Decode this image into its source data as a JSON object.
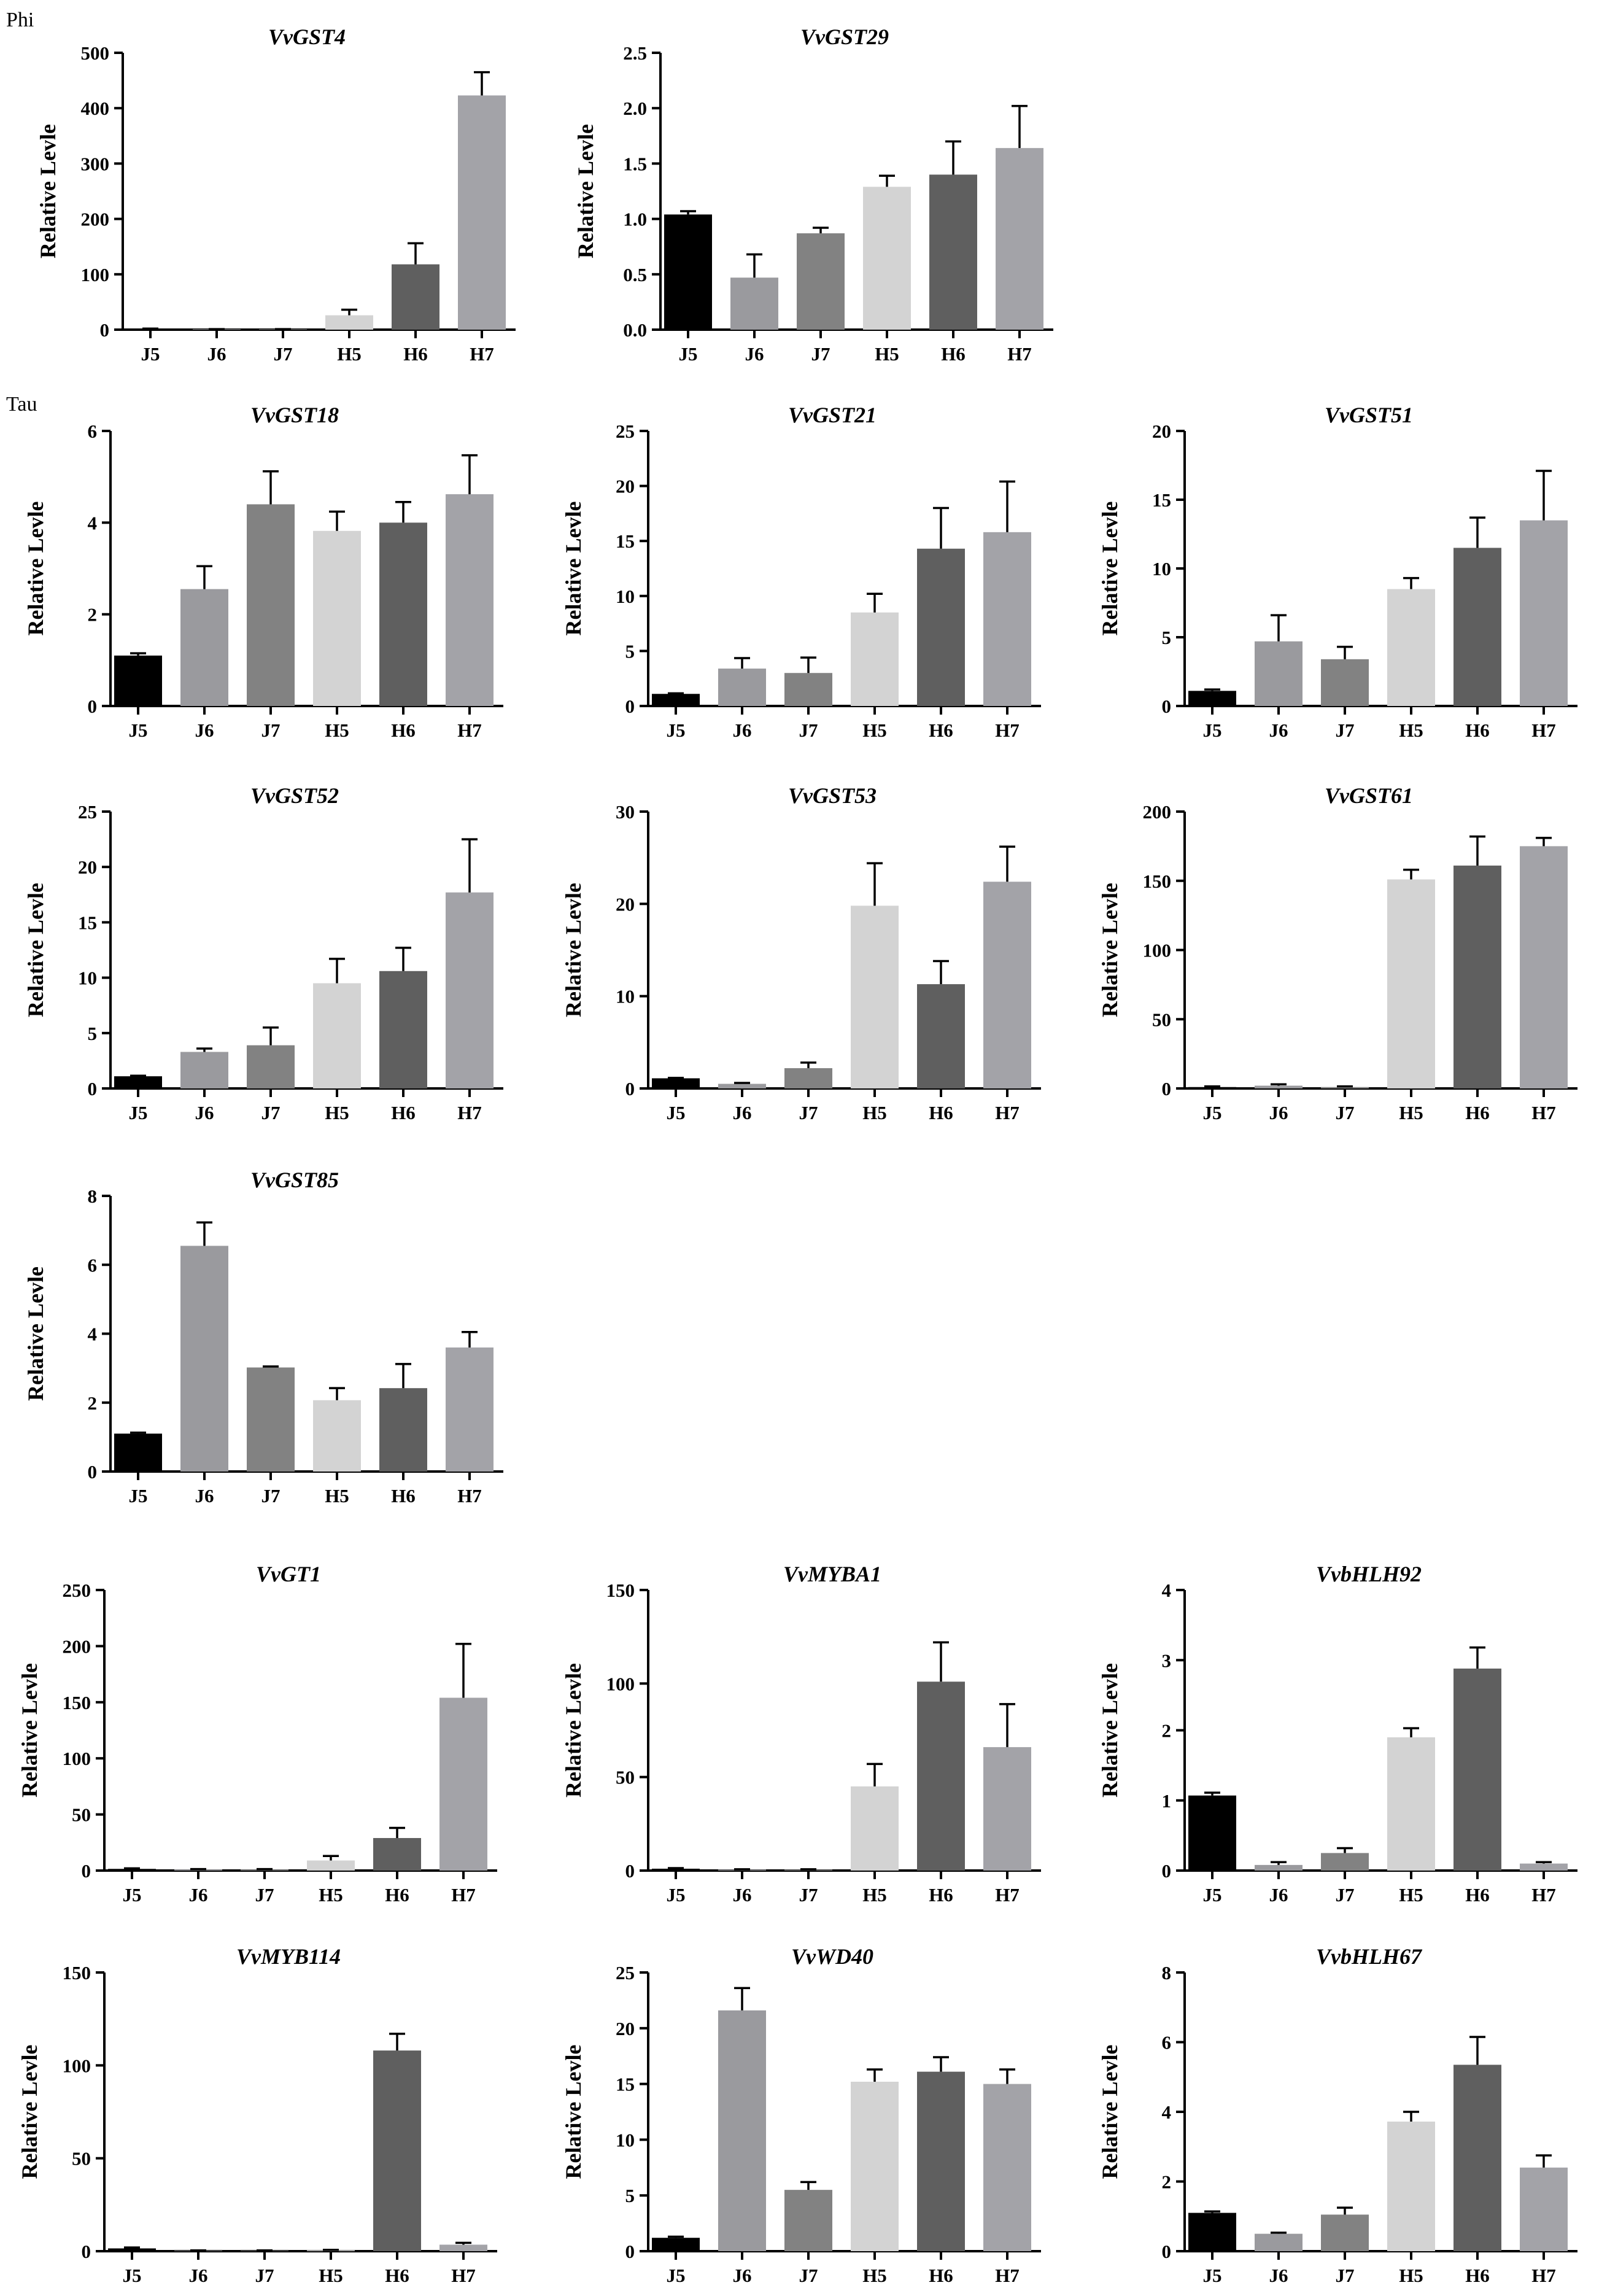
{
  "figure": {
    "section_labels": {
      "phi": "Phi",
      "tau": "Tau"
    },
    "bar_colors": [
      "#000000",
      "#9a9a9e",
      "#828282",
      "#d3d3d3",
      "#5f5f5f",
      "#a3a3a8"
    ]
  },
  "chart_data": [
    {
      "type": "bar",
      "title": "VvGST4",
      "ylabel": "Relative Levle",
      "xlabel": "",
      "categories": [
        "J5",
        "J6",
        "J7",
        "H5",
        "H6",
        "H7"
      ],
      "values": [
        1,
        1,
        1,
        26,
        118,
        423
      ],
      "errors": [
        1,
        0,
        0,
        10,
        38,
        42
      ],
      "ylim": [
        0,
        500
      ],
      "yticks": [
        0,
        100,
        200,
        300,
        400,
        500
      ],
      "ytick_labels": [
        "0",
        "100",
        "200",
        "300",
        "400",
        "500"
      ]
    },
    {
      "type": "bar",
      "title": "VvGST29",
      "ylabel": "Relative Levle",
      "xlabel": "",
      "categories": [
        "J5",
        "J6",
        "J7",
        "H5",
        "H6",
        "H7"
      ],
      "values": [
        1.04,
        0.47,
        0.87,
        1.29,
        1.4,
        1.64
      ],
      "errors": [
        0.03,
        0.21,
        0.05,
        0.1,
        0.3,
        0.38
      ],
      "ylim": [
        0,
        2.5
      ],
      "yticks": [
        0,
        0.5,
        1,
        1.5,
        2,
        2.5
      ],
      "ytick_labels": [
        "0.0",
        "0.5",
        "1.0",
        "1.5",
        "2.0",
        "2.5"
      ]
    },
    {
      "type": "bar",
      "title": "VvGST18",
      "ylabel": "Relative Levle",
      "xlabel": "",
      "categories": [
        "J5",
        "J6",
        "J7",
        "H5",
        "H6",
        "H7"
      ],
      "values": [
        1.1,
        2.55,
        4.4,
        3.82,
        4.0,
        4.62
      ],
      "errors": [
        0.05,
        0.5,
        0.72,
        0.42,
        0.45,
        0.85
      ],
      "ylim": [
        0,
        6
      ],
      "yticks": [
        0,
        2,
        4,
        6
      ],
      "ytick_labels": [
        "0",
        "2",
        "4",
        "6"
      ]
    },
    {
      "type": "bar",
      "title": "VvGST21",
      "ylabel": "Relative Levle",
      "xlabel": "",
      "categories": [
        "J5",
        "J6",
        "J7",
        "H5",
        "H6",
        "H7"
      ],
      "values": [
        1.1,
        3.4,
        3.0,
        8.5,
        14.3,
        15.8
      ],
      "errors": [
        0.05,
        0.95,
        1.4,
        1.7,
        3.7,
        4.6
      ],
      "ylim": [
        0,
        25
      ],
      "yticks": [
        0,
        5,
        10,
        15,
        20,
        25
      ],
      "ytick_labels": [
        "0",
        "5",
        "10",
        "15",
        "20",
        "25"
      ]
    },
    {
      "type": "bar",
      "title": "VvGST51",
      "ylabel": "Relative Levle",
      "xlabel": "",
      "categories": [
        "J5",
        "J6",
        "J7",
        "H5",
        "H6",
        "H7"
      ],
      "values": [
        1.1,
        4.7,
        3.4,
        8.5,
        11.5,
        13.5
      ],
      "errors": [
        0.1,
        1.9,
        0.9,
        0.8,
        2.2,
        3.6
      ],
      "ylim": [
        0,
        20
      ],
      "yticks": [
        0,
        5,
        10,
        15,
        20
      ],
      "ytick_labels": [
        "0",
        "5",
        "10",
        "15",
        "20"
      ]
    },
    {
      "type": "bar",
      "title": "VvGST52",
      "ylabel": "Relative Levle",
      "xlabel": "",
      "categories": [
        "J5",
        "J6",
        "J7",
        "H5",
        "H6",
        "H7"
      ],
      "values": [
        1.1,
        3.3,
        3.9,
        9.5,
        10.6,
        17.7
      ],
      "errors": [
        0.05,
        0.3,
        1.6,
        2.2,
        2.1,
        4.8
      ],
      "ylim": [
        0,
        25
      ],
      "yticks": [
        0,
        5,
        10,
        15,
        20,
        25
      ],
      "ytick_labels": [
        "0",
        "5",
        "10",
        "15",
        "20",
        "25"
      ]
    },
    {
      "type": "bar",
      "title": "VvGST53",
      "ylabel": "Relative Levle",
      "xlabel": "",
      "categories": [
        "J5",
        "J6",
        "J7",
        "H5",
        "H6",
        "H7"
      ],
      "values": [
        1.1,
        0.5,
        2.2,
        19.8,
        11.3,
        22.4
      ],
      "errors": [
        0.05,
        0.1,
        0.6,
        4.6,
        2.5,
        3.8
      ],
      "ylim": [
        0,
        30
      ],
      "yticks": [
        0,
        10,
        20,
        30
      ],
      "ytick_labels": [
        "0",
        "10",
        "20",
        "30"
      ]
    },
    {
      "type": "bar",
      "title": "VvGST61",
      "ylabel": "Relative Levle",
      "xlabel": "",
      "categories": [
        "J5",
        "J6",
        "J7",
        "H5",
        "H6",
        "H7"
      ],
      "values": [
        1,
        2,
        1,
        151,
        161,
        175
      ],
      "errors": [
        0.5,
        1,
        0.5,
        7,
        21,
        6
      ],
      "ylim": [
        0,
        200
      ],
      "yticks": [
        0,
        50,
        100,
        150,
        200
      ],
      "ytick_labels": [
        "0",
        "50",
        "100",
        "150",
        "200"
      ]
    },
    {
      "type": "bar",
      "title": "VvGST85",
      "ylabel": "Relative Levle",
      "xlabel": "",
      "categories": [
        "J5",
        "J6",
        "J7",
        "H5",
        "H6",
        "H7"
      ],
      "values": [
        1.1,
        6.55,
        3.02,
        2.07,
        2.42,
        3.6
      ],
      "errors": [
        0.03,
        0.68,
        0.03,
        0.35,
        0.7,
        0.45
      ],
      "ylim": [
        0,
        8
      ],
      "yticks": [
        0,
        2,
        4,
        6,
        8
      ],
      "ytick_labels": [
        "0",
        "2",
        "4",
        "6",
        "8"
      ]
    },
    {
      "type": "bar",
      "title": "VvGT1",
      "ylabel": "Relative Levle",
      "xlabel": "",
      "categories": [
        "J5",
        "J6",
        "J7",
        "H5",
        "H6",
        "H7"
      ],
      "values": [
        1.5,
        1,
        1,
        9,
        29,
        154
      ],
      "errors": [
        0.5,
        0.3,
        0.3,
        4,
        9,
        48
      ],
      "ylim": [
        0,
        250
      ],
      "yticks": [
        0,
        50,
        100,
        150,
        200,
        250
      ],
      "ytick_labels": [
        "0",
        "50",
        "100",
        "150",
        "200",
        "250"
      ]
    },
    {
      "type": "bar",
      "title": "VvMYBA1",
      "ylabel": "Relative Levle",
      "xlabel": "",
      "categories": [
        "J5",
        "J6",
        "J7",
        "H5",
        "H6",
        "H7"
      ],
      "values": [
        1,
        0.5,
        0.5,
        45,
        101,
        66
      ],
      "errors": [
        0.3,
        0.2,
        0.2,
        12,
        21,
        23
      ],
      "ylim": [
        0,
        150
      ],
      "yticks": [
        0,
        50,
        100,
        150
      ],
      "ytick_labels": [
        "0",
        "50",
        "100",
        "150"
      ]
    },
    {
      "type": "bar",
      "title": "VvbHLH92",
      "ylabel": "Relative Levle",
      "xlabel": "",
      "categories": [
        "J5",
        "J6",
        "J7",
        "H5",
        "H6",
        "H7"
      ],
      "values": [
        1.07,
        0.08,
        0.25,
        1.9,
        2.88,
        0.1
      ],
      "errors": [
        0.04,
        0.04,
        0.07,
        0.13,
        0.3,
        0.02
      ],
      "ylim": [
        0,
        4
      ],
      "yticks": [
        0,
        1,
        2,
        3,
        4
      ],
      "ytick_labels": [
        "0",
        "1",
        "2",
        "3",
        "4"
      ]
    },
    {
      "type": "bar",
      "title": "VvMYB114",
      "ylabel": "Relative Levle",
      "xlabel": "",
      "categories": [
        "J5",
        "J6",
        "J7",
        "H5",
        "H6",
        "H7"
      ],
      "values": [
        1.5,
        0.3,
        0.3,
        0.5,
        108,
        3.5
      ],
      "errors": [
        0.5,
        0.1,
        0.1,
        0.2,
        9,
        1
      ],
      "ylim": [
        0,
        150
      ],
      "yticks": [
        0,
        50,
        100,
        150
      ],
      "ytick_labels": [
        "0",
        "50",
        "100",
        "150"
      ]
    },
    {
      "type": "bar",
      "title": "VvWD40",
      "ylabel": "Relative Levle",
      "xlabel": "",
      "categories": [
        "J5",
        "J6",
        "J7",
        "H5",
        "H6",
        "H7"
      ],
      "values": [
        1.2,
        21.6,
        5.5,
        15.2,
        16.1,
        15.0
      ],
      "errors": [
        0.1,
        2.0,
        0.7,
        1.1,
        1.3,
        1.3
      ],
      "ylim": [
        0,
        25
      ],
      "yticks": [
        0,
        5,
        10,
        15,
        20,
        25
      ],
      "ytick_labels": [
        "0",
        "5",
        "10",
        "15",
        "20",
        "25"
      ]
    },
    {
      "type": "bar",
      "title": "VvbHLH67",
      "ylabel": "Relative Levle",
      "xlabel": "",
      "categories": [
        "J5",
        "J6",
        "J7",
        "H5",
        "H6",
        "H7"
      ],
      "values": [
        1.1,
        0.5,
        1.05,
        3.72,
        5.35,
        2.4
      ],
      "errors": [
        0.04,
        0.03,
        0.2,
        0.28,
        0.8,
        0.35
      ],
      "ylim": [
        0,
        8
      ],
      "yticks": [
        0,
        2,
        4,
        6,
        8
      ],
      "ytick_labels": [
        "0",
        "2",
        "4",
        "6",
        "8"
      ]
    }
  ]
}
